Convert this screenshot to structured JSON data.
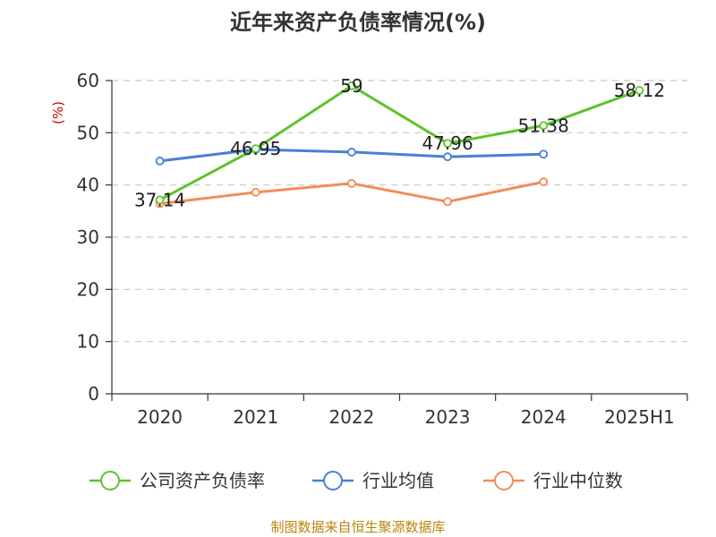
{
  "chart_data": {
    "type": "line",
    "title": "近年来资产负债率情况(%)",
    "y_unit": "(%)",
    "categories": [
      "2020",
      "2021",
      "2022",
      "2023",
      "2024",
      "2025H1"
    ],
    "ylim": [
      0,
      60
    ],
    "yticks": [
      0,
      10,
      20,
      30,
      40,
      50,
      60
    ],
    "grid": true,
    "legend_position": "bottom",
    "series": [
      {
        "name": "公司资产负债率",
        "color": "#5cc42b",
        "values": [
          37.14,
          46.95,
          59,
          47.96,
          51.38,
          58.12
        ],
        "labels": [
          "37.14",
          "46.95",
          "59",
          "47.96",
          "51.38",
          "58.12"
        ]
      },
      {
        "name": "行业均值",
        "color": "#4a7fd8",
        "values": [
          44.6,
          46.8,
          46.3,
          45.4,
          45.9,
          null
        ]
      },
      {
        "name": "行业中位数",
        "color": "#f28c5a",
        "values": [
          36.4,
          38.6,
          40.3,
          36.8,
          40.6,
          null
        ]
      }
    ],
    "source": "制图数据来自恒生聚源数据库"
  }
}
